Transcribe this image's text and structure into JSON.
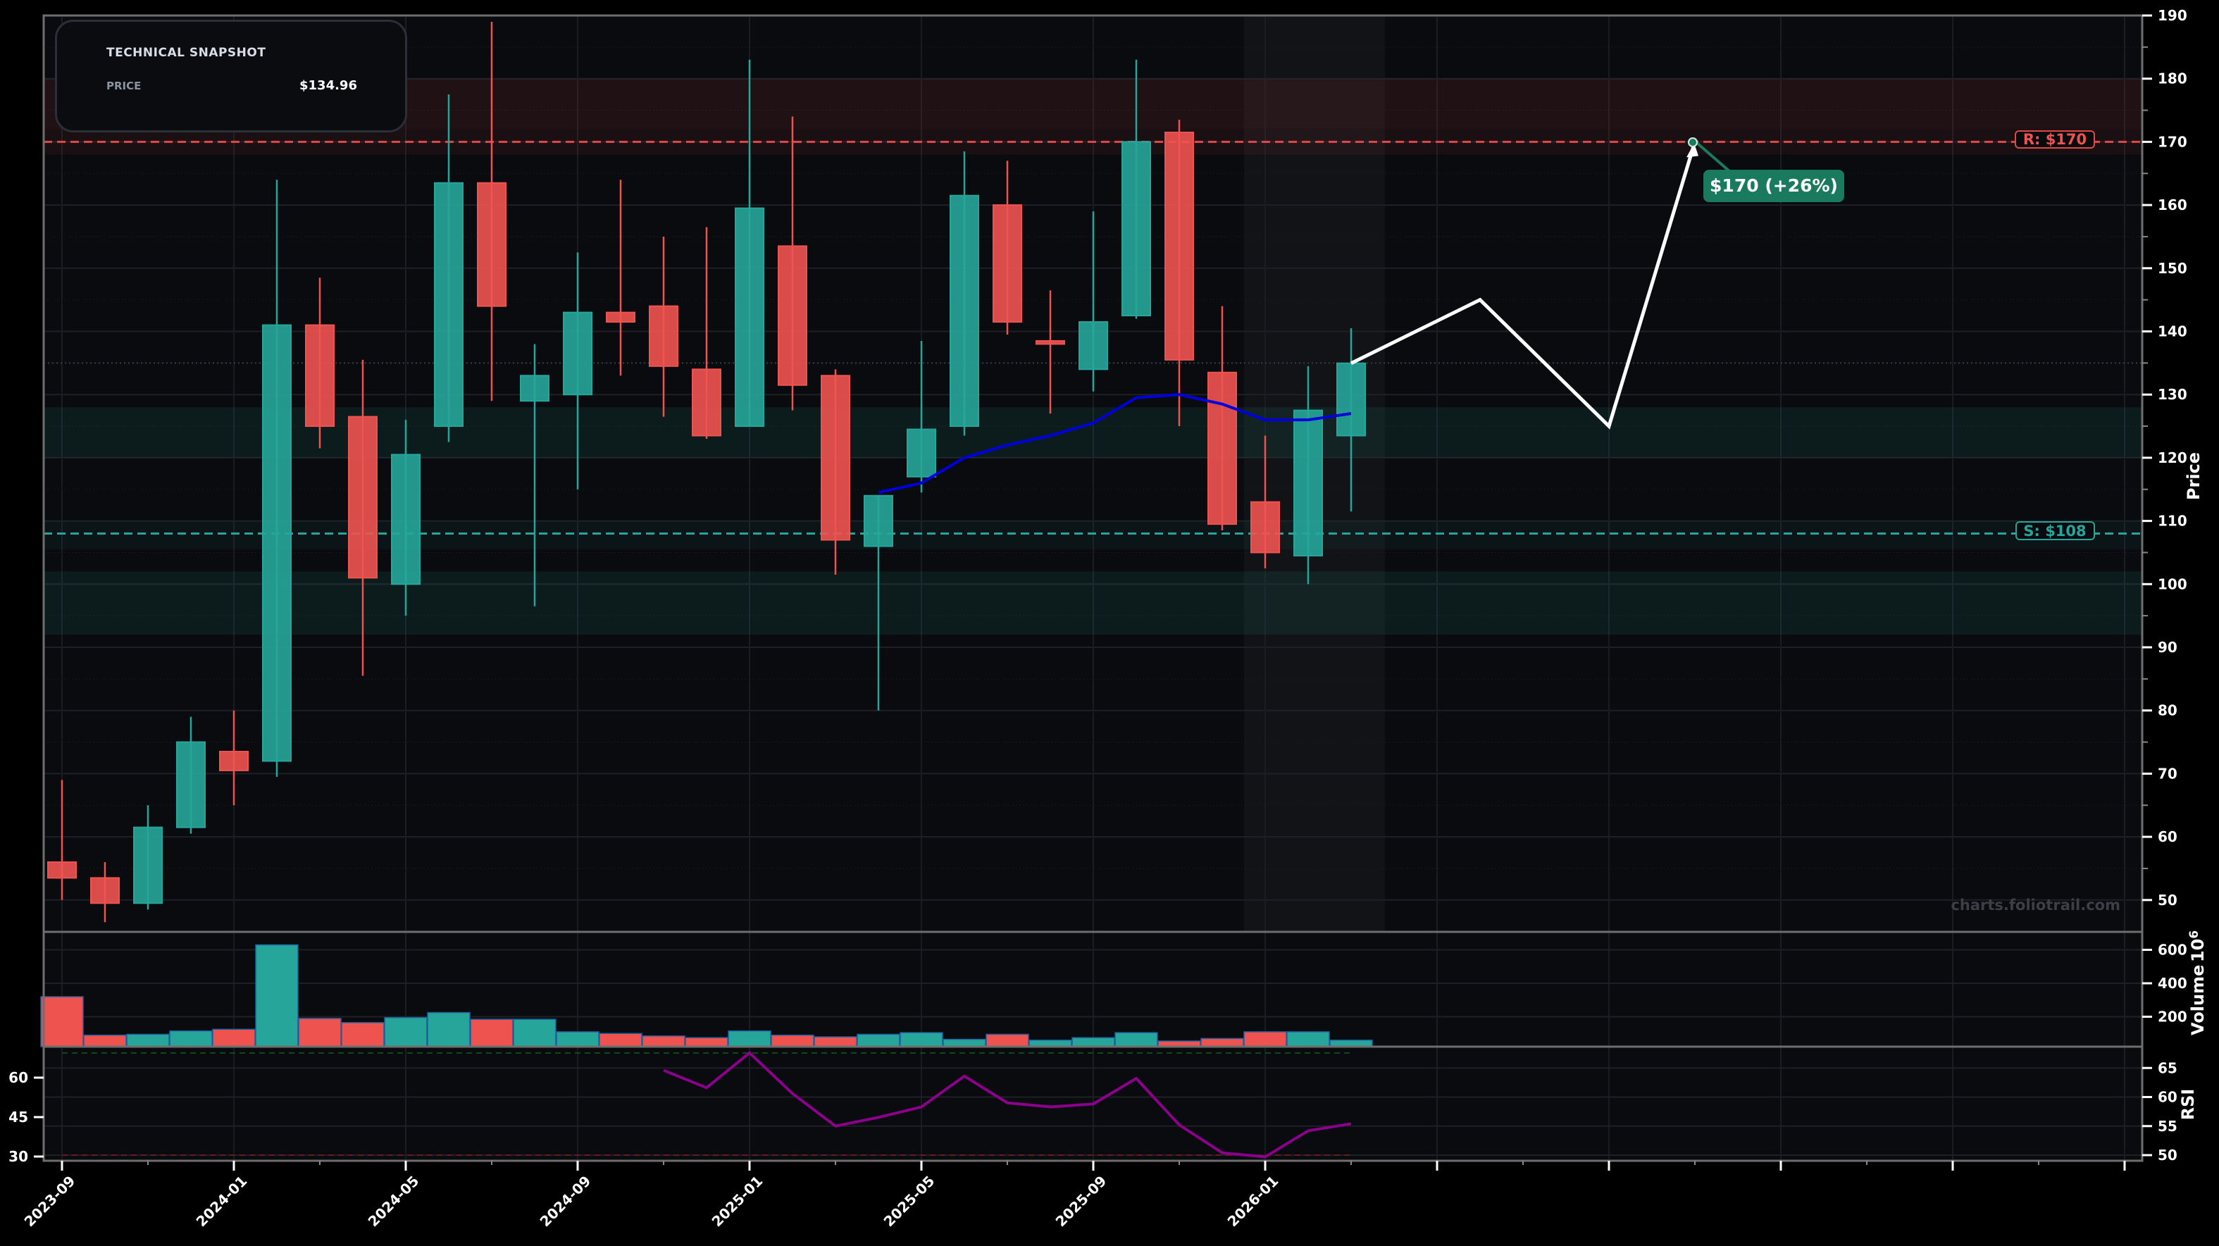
{
  "snapshot": {
    "title": "TECHNICAL SNAPSHOT",
    "price_label": "PRICE",
    "price_value": "$134.96"
  },
  "levels": {
    "resistance_label": "R: $170",
    "support_label": "S: $108",
    "target_label": "$170 (+26%)"
  },
  "axes": {
    "price_label": "Price",
    "volume_label": "Volume",
    "volume_exponent": "10",
    "volume_exponent_power": "6",
    "rsi_label": "RSI",
    "price_ticks": [
      "190",
      "180",
      "170",
      "160",
      "150",
      "140",
      "130",
      "120",
      "110",
      "100",
      "90",
      "80",
      "70",
      "60",
      "50"
    ],
    "volume_ticks": [
      "600",
      "400",
      "200"
    ],
    "rsi_right_ticks": [
      "65",
      "60",
      "55",
      "50"
    ],
    "rsi_left_ticks": [
      "60",
      "45",
      "30"
    ],
    "x_ticks": [
      "2023-09",
      "2024-01",
      "2024-05",
      "2024-09",
      "2025-01",
      "2025-05",
      "2025-09",
      "2026-01"
    ]
  },
  "watermark": "charts.foliotrail.com",
  "colors": {
    "up": "#26a69a",
    "down": "#ef5350",
    "sma": "#0000dd",
    "rsi": "#8b008b",
    "projection": "#ffffff",
    "target_badge": "#1a7a5e",
    "background": "#0a0b0f"
  },
  "chart_data": [
    {
      "type": "candlestick",
      "title": "Price",
      "ylabel": "Price",
      "ylim": [
        45,
        190
      ],
      "x": [
        "2023-09",
        "2023-10",
        "2023-11",
        "2023-12",
        "2024-01",
        "2024-02",
        "2024-03",
        "2024-04",
        "2024-05",
        "2024-06",
        "2024-07",
        "2024-08",
        "2024-09",
        "2024-10",
        "2024-11",
        "2024-12",
        "2025-01",
        "2025-02",
        "2025-03",
        "2025-04",
        "2025-05",
        "2025-06",
        "2025-07",
        "2025-08",
        "2025-09",
        "2025-10",
        "2025-11",
        "2025-12",
        "2026-01",
        "2026-02",
        "2026-03"
      ],
      "open": [
        56.0,
        53.5,
        49.5,
        61.5,
        73.5,
        72.0,
        141.0,
        126.5,
        100.0,
        125.0,
        163.5,
        129.0,
        130.0,
        143.0,
        144.0,
        134.0,
        125.0,
        153.5,
        133.0,
        106.0,
        117.0,
        125.0,
        160.0,
        138.5,
        134.0,
        142.5,
        171.5,
        133.5,
        113.0,
        104.5,
        123.5
      ],
      "high": [
        69.0,
        56.0,
        65.0,
        79.0,
        80.0,
        164.0,
        148.5,
        135.5,
        126.0,
        177.5,
        189.0,
        138.0,
        152.5,
        164.0,
        155.0,
        156.5,
        183.0,
        174.0,
        134.0,
        114.0,
        138.5,
        168.5,
        167.0,
        146.5,
        159.0,
        183.0,
        173.5,
        144.0,
        123.5,
        134.5,
        140.5
      ],
      "low": [
        50.0,
        46.5,
        48.5,
        60.5,
        65.0,
        69.5,
        121.5,
        85.5,
        95.0,
        122.5,
        129.0,
        96.5,
        115.0,
        133.0,
        126.5,
        123.0,
        125.0,
        127.5,
        101.5,
        80.0,
        114.5,
        123.5,
        139.5,
        127.0,
        130.5,
        142.0,
        125.0,
        108.5,
        102.5,
        100.0,
        111.5
      ],
      "close": [
        53.5,
        49.5,
        61.5,
        75.0,
        70.5,
        141.0,
        125.0,
        101.0,
        120.5,
        163.5,
        144.0,
        133.0,
        143.0,
        141.5,
        134.5,
        123.5,
        159.5,
        131.5,
        107.0,
        114.0,
        124.5,
        161.5,
        141.5,
        138.0,
        141.5,
        170.0,
        135.5,
        109.5,
        105.0,
        127.5,
        134.96
      ],
      "sma": {
        "start_index": 19,
        "values": [
          114.5,
          116.0,
          120.0,
          122.0,
          123.5,
          125.5,
          129.5,
          130.0,
          128.5,
          126.0,
          126.0,
          127.0
        ]
      },
      "resistance": 170,
      "support": 108,
      "resistance_zone": [
        172,
        180
      ],
      "support_zones": [
        [
          120,
          128
        ],
        [
          92,
          102
        ]
      ],
      "projection": {
        "x": [
          "2026-03",
          "2026-06",
          "2026-09",
          "2026-11"
        ],
        "y": [
          134.96,
          145,
          125,
          170
        ],
        "target": 170,
        "target_pct": 26
      }
    },
    {
      "type": "bar",
      "title": "Volume",
      "ylabel": "Volume (10^6)",
      "ylim": [
        0,
        660
      ],
      "x": [
        "2023-09",
        "2023-10",
        "2023-11",
        "2023-12",
        "2024-01",
        "2024-02",
        "2024-03",
        "2024-04",
        "2024-05",
        "2024-06",
        "2024-07",
        "2024-08",
        "2024-09",
        "2024-10",
        "2024-11",
        "2024-12",
        "2025-01",
        "2025-02",
        "2025-03",
        "2025-04",
        "2025-05",
        "2025-06",
        "2025-07",
        "2025-08",
        "2025-09",
        "2025-10",
        "2025-11",
        "2025-12",
        "2026-01",
        "2026-02",
        "2026-03"
      ],
      "values": [
        320,
        90,
        95,
        115,
        125,
        630,
        190,
        165,
        195,
        225,
        185,
        185,
        110,
        100,
        85,
        75,
        115,
        90,
        80,
        95,
        105,
        65,
        95,
        60,
        75,
        105,
        55,
        70,
        110,
        110,
        60
      ],
      "colors": [
        "down",
        "down",
        "up",
        "up",
        "down",
        "up",
        "down",
        "down",
        "up",
        "up",
        "down",
        "up",
        "up",
        "down",
        "down",
        "down",
        "up",
        "down",
        "down",
        "up",
        "up",
        "up",
        "down",
        "up",
        "up",
        "up",
        "down",
        "down",
        "down",
        "up",
        "up"
      ]
    },
    {
      "type": "line",
      "title": "RSI",
      "ylabel": "RSI",
      "ylim": [
        49.5,
        68
      ],
      "x": [
        "2024-11",
        "2024-12",
        "2025-01",
        "2025-02",
        "2025-03",
        "2025-04",
        "2025-05",
        "2025-06",
        "2025-07",
        "2025-08",
        "2025-09",
        "2025-10",
        "2025-11",
        "2025-12",
        "2026-01",
        "2026-02",
        "2026-03"
      ],
      "values": [
        64.6,
        61.6,
        67.6,
        60.6,
        55.0,
        56.5,
        58.3,
        63.6,
        59.0,
        58.3,
        58.8,
        63.2,
        55.2,
        50.4,
        49.7,
        54.2,
        55.4
      ],
      "overbought": 70,
      "oversold": 30
    }
  ]
}
